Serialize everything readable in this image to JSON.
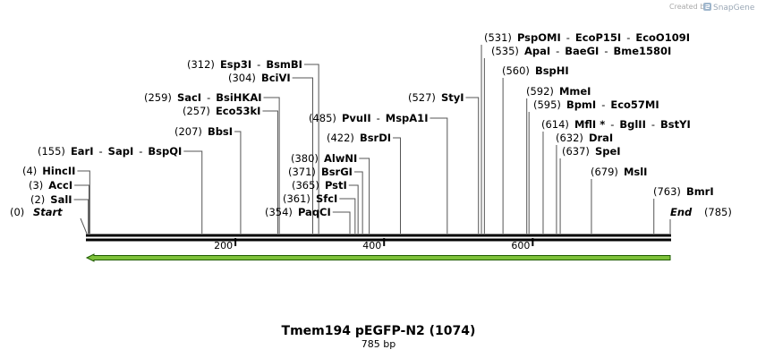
{
  "brand": {
    "created_by": "Created by",
    "product": "SnapGene"
  },
  "map": {
    "total_bp": 785,
    "title": "Tmem194 pEGFP-N2 (1074)",
    "subtitle": "785 bp",
    "ticks": [
      "200",
      "400",
      "600"
    ],
    "tick_values": [
      200,
      400,
      600
    ],
    "start_label": "Start",
    "start_pos": "(0)",
    "end_label": "End",
    "end_pos": "(785)",
    "feature_color": "#7ec13a",
    "feature_stroke": "#1e5c00"
  },
  "sites": [
    {
      "pos": "(2)",
      "names": [
        "SalI"
      ],
      "bp": 2
    },
    {
      "pos": "(3)",
      "names": [
        "AccI"
      ],
      "bp": 3
    },
    {
      "pos": "(4)",
      "names": [
        "HincII"
      ],
      "bp": 4
    },
    {
      "pos": "(155)",
      "names": [
        "EarI",
        "SapI",
        "BspQI"
      ],
      "bp": 155
    },
    {
      "pos": "(207)",
      "names": [
        "BbsI"
      ],
      "bp": 207
    },
    {
      "pos": "(257)",
      "names": [
        "Eco53kI"
      ],
      "bp": 257
    },
    {
      "pos": "(259)",
      "names": [
        "SacI",
        "BsiHKAI"
      ],
      "bp": 259
    },
    {
      "pos": "(304)",
      "names": [
        "BciVI"
      ],
      "bp": 304
    },
    {
      "pos": "(312)",
      "names": [
        "Esp3I",
        "BsmBI"
      ],
      "bp": 312
    },
    {
      "pos": "(354)",
      "names": [
        "PaqCI"
      ],
      "bp": 354
    },
    {
      "pos": "(361)",
      "names": [
        "SfcI"
      ],
      "bp": 361
    },
    {
      "pos": "(365)",
      "names": [
        "PstI"
      ],
      "bp": 365
    },
    {
      "pos": "(371)",
      "names": [
        "BsrGI"
      ],
      "bp": 371
    },
    {
      "pos": "(380)",
      "names": [
        "AlwNI"
      ],
      "bp": 380
    },
    {
      "pos": "(422)",
      "names": [
        "BsrDI"
      ],
      "bp": 422
    },
    {
      "pos": "(485)",
      "names": [
        "PvuII",
        "MspA1I"
      ],
      "bp": 485
    },
    {
      "pos": "(527)",
      "names": [
        "StyI"
      ],
      "bp": 527
    },
    {
      "pos": "(531)",
      "names": [
        "PspOMI",
        "EcoP15I",
        "EcoO109I"
      ],
      "bp": 531
    },
    {
      "pos": "(535)",
      "names": [
        "ApaI",
        "BaeGI",
        "Bme1580I"
      ],
      "bp": 535
    },
    {
      "pos": "(560)",
      "names": [
        "BspHI"
      ],
      "bp": 560
    },
    {
      "pos": "(592)",
      "names": [
        "MmeI"
      ],
      "bp": 592
    },
    {
      "pos": "(595)",
      "names": [
        "BpmI",
        "Eco57MI"
      ],
      "bp": 595
    },
    {
      "pos": "(614)",
      "names": [
        "MflI *",
        "BglII",
        "BstYI"
      ],
      "bp": 614
    },
    {
      "pos": "(632)",
      "names": [
        "DraI"
      ],
      "bp": 632
    },
    {
      "pos": "(637)",
      "names": [
        "SpeI"
      ],
      "bp": 637
    },
    {
      "pos": "(679)",
      "names": [
        "MslI"
      ],
      "bp": 679
    },
    {
      "pos": "(763)",
      "names": [
        "BmrI"
      ],
      "bp": 763
    }
  ]
}
